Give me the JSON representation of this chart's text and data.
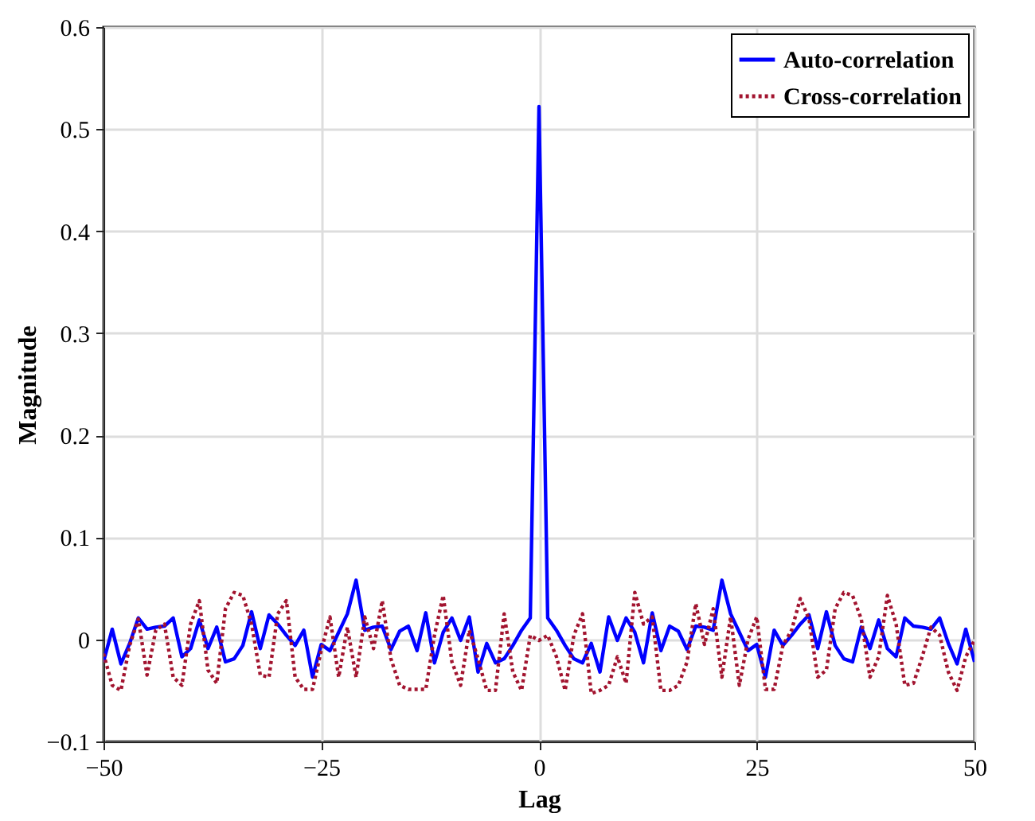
{
  "chart_data": {
    "type": "line",
    "xlabel": "Lag",
    "ylabel": "Magnitude",
    "x": [
      -50,
      -49,
      -48,
      -47,
      -46,
      -45,
      -44,
      -43,
      -42,
      -41,
      -40,
      -39,
      -38,
      -37,
      -36,
      -35,
      -34,
      -33,
      -32,
      -31,
      -30,
      -29,
      -28,
      -27,
      -26,
      -25,
      -24,
      -23,
      -22,
      -21,
      -20,
      -19,
      -18,
      -17,
      -16,
      -15,
      -14,
      -13,
      -12,
      -11,
      -10,
      -9,
      -8,
      -7,
      -6,
      -5,
      -4,
      -3,
      -2,
      -1,
      0,
      1,
      2,
      3,
      4,
      5,
      6,
      7,
      8,
      9,
      10,
      11,
      12,
      13,
      14,
      15,
      16,
      17,
      18,
      19,
      20,
      21,
      22,
      23,
      24,
      25,
      26,
      27,
      28,
      29,
      30,
      31,
      32,
      33,
      34,
      35,
      36,
      37,
      38,
      39,
      40,
      41,
      42,
      43,
      44,
      45,
      46,
      47,
      48,
      49,
      50
    ],
    "series": [
      {
        "name": "Auto-correlation",
        "color": "#0000ff",
        "line_style": "solid",
        "values": [
          -0.022,
          0.01,
          -0.024,
          -0.004,
          0.021,
          0.01,
          0.012,
          0.013,
          0.021,
          -0.017,
          -0.009,
          0.019,
          -0.009,
          0.012,
          -0.022,
          -0.019,
          -0.006,
          0.027,
          -0.009,
          0.024,
          0.015,
          0.004,
          -0.006,
          0.009,
          -0.037,
          -0.005,
          -0.011,
          0.007,
          0.025,
          0.058,
          0.009,
          0.012,
          0.013,
          -0.01,
          0.008,
          0.013,
          -0.011,
          0.026,
          -0.023,
          0.007,
          0.021,
          -0.001,
          0.022,
          -0.032,
          -0.004,
          -0.023,
          -0.019,
          -0.006,
          0.009,
          0.021,
          0.522,
          0.021,
          0.009,
          -0.006,
          -0.019,
          -0.023,
          -0.004,
          -0.032,
          0.022,
          -0.001,
          0.021,
          0.007,
          -0.023,
          0.026,
          -0.011,
          0.013,
          0.008,
          -0.01,
          0.013,
          0.012,
          0.009,
          0.058,
          0.025,
          0.007,
          -0.011,
          -0.005,
          -0.037,
          0.009,
          -0.006,
          0.004,
          0.015,
          0.024,
          -0.009,
          0.027,
          -0.006,
          -0.019,
          -0.022,
          0.012,
          -0.009,
          0.019,
          -0.009,
          -0.017,
          0.021,
          0.013,
          0.012,
          0.01,
          0.021,
          -0.004,
          -0.024,
          0.01,
          -0.022
        ]
      },
      {
        "name": "Cross-correlation",
        "color": "#a2142f",
        "line_style": "dotted",
        "values": [
          -0.014,
          -0.045,
          -0.05,
          -0.006,
          0.02,
          -0.035,
          0.009,
          0.015,
          -0.037,
          -0.045,
          0.015,
          0.038,
          -0.03,
          -0.043,
          0.03,
          0.046,
          0.043,
          0.015,
          -0.035,
          -0.037,
          0.025,
          0.038,
          -0.037,
          -0.049,
          -0.049,
          -0.011,
          0.022,
          -0.037,
          0.012,
          -0.037,
          0.022,
          -0.009,
          0.038,
          -0.019,
          -0.045,
          -0.049,
          -0.049,
          -0.049,
          0.004,
          0.043,
          -0.022,
          -0.045,
          0.009,
          -0.019,
          -0.05,
          -0.05,
          0.025,
          -0.032,
          -0.05,
          0.004,
          -0.001,
          0.004,
          -0.017,
          -0.05,
          0.004,
          0.025,
          -0.053,
          -0.05,
          -0.045,
          -0.017,
          -0.043,
          0.046,
          0.015,
          0.022,
          -0.05,
          -0.05,
          -0.045,
          -0.022,
          0.035,
          -0.005,
          0.03,
          -0.037,
          0.022,
          -0.045,
          0.0,
          0.022,
          -0.049,
          -0.049,
          -0.006,
          0.009,
          0.04,
          0.02,
          -0.037,
          -0.03,
          0.03,
          0.046,
          0.043,
          0.02,
          -0.037,
          -0.017,
          0.043,
          0.015,
          -0.045,
          -0.043,
          -0.017,
          0.012,
          0.004,
          -0.032,
          -0.05,
          -0.017,
          -0.001
        ]
      }
    ],
    "xlim": [
      -50,
      50
    ],
    "xticks": [
      -50,
      -25,
      0,
      25,
      50
    ],
    "ylim": [
      -0.1,
      0.6
    ],
    "yticks": [
      -0.1,
      0,
      0.1,
      0.2,
      0.3,
      0.4,
      0.5,
      0.6
    ],
    "grid": true,
    "legend": "top right"
  }
}
